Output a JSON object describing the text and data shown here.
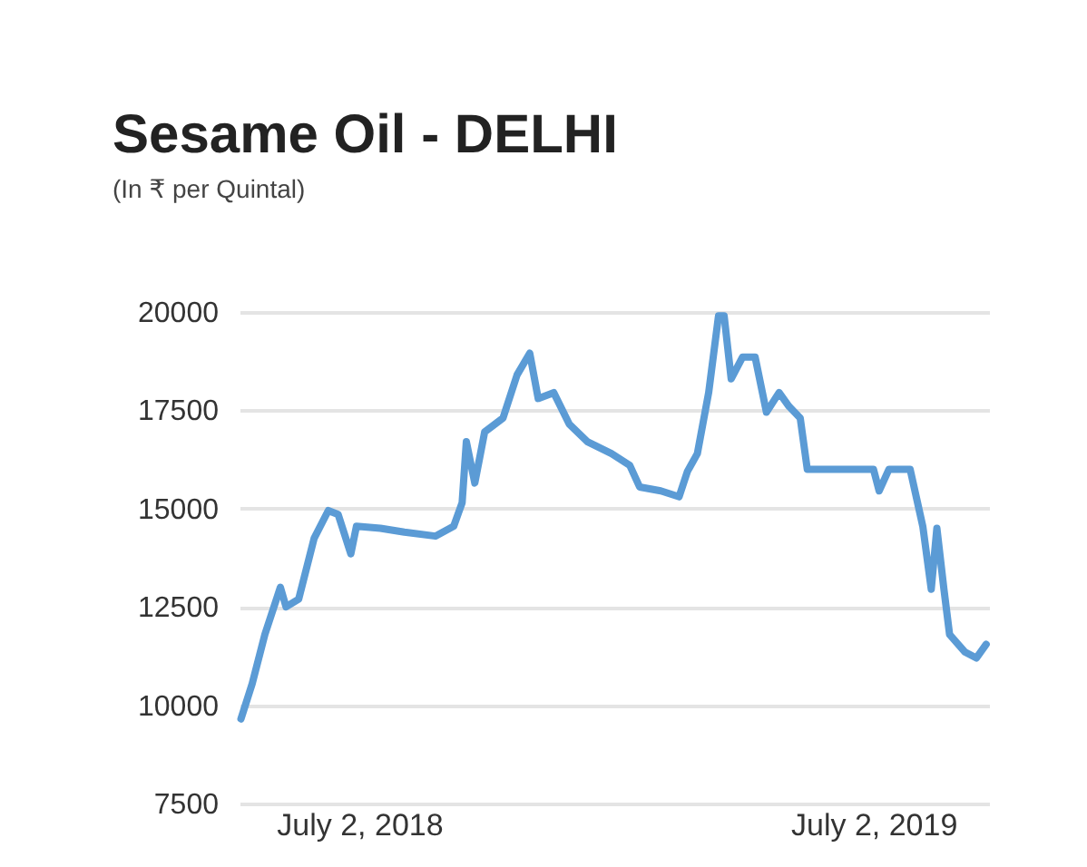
{
  "chart_data": {
    "type": "line",
    "title": "Sesame Oil - DELHI",
    "subtitle": "(In ₹ per Quintal)",
    "x": [
      "2018-04-09",
      "2018-04-17",
      "2018-04-26",
      "2018-05-07",
      "2018-05-11",
      "2018-05-20",
      "2018-05-31",
      "2018-06-10",
      "2018-06-17",
      "2018-06-26",
      "2018-06-30",
      "2018-07-17",
      "2018-08-03",
      "2018-08-25",
      "2018-09-07",
      "2018-09-13",
      "2018-09-16",
      "2018-09-22",
      "2018-09-29",
      "2018-10-12",
      "2018-10-22",
      "2018-10-31",
      "2018-11-06",
      "2018-11-17",
      "2018-11-28",
      "2018-12-11",
      "2018-12-28",
      "2019-01-10",
      "2019-01-17",
      "2019-02-01",
      "2019-02-14",
      "2019-02-20",
      "2019-02-27",
      "2019-03-07",
      "2019-03-14",
      "2019-03-18",
      "2019-03-23",
      "2019-03-31",
      "2019-04-09",
      "2019-04-17",
      "2019-04-26",
      "2019-05-03",
      "2019-05-11",
      "2019-05-16",
      "2019-07-02",
      "2019-07-06",
      "2019-07-13",
      "2019-07-28",
      "2019-08-06",
      "2019-08-12",
      "2019-08-16",
      "2019-08-21",
      "2019-08-25",
      "2019-09-05",
      "2019-09-13",
      "2019-09-20"
    ],
    "series": [
      {
        "color": "#5b9bd5",
        "values": [
          9650,
          10550,
          11800,
          13000,
          12500,
          12700,
          14250,
          14950,
          14850,
          13850,
          14550,
          14500,
          14400,
          14300,
          14550,
          15150,
          16700,
          15650,
          16950,
          17300,
          18400,
          18950,
          17800,
          17950,
          17150,
          16700,
          16400,
          16100,
          15550,
          15450,
          15300,
          15950,
          16400,
          17950,
          19900,
          19900,
          18300,
          18850,
          18850,
          17450,
          17950,
          17600,
          17300,
          16000,
          16000,
          15450,
          16000,
          16000,
          14550,
          12950,
          14500,
          12950,
          11800,
          11350,
          11200,
          11550
        ]
      }
    ],
    "xlim": [
      "2018-04-08",
      "2019-09-22"
    ],
    "xticks": [
      {
        "value": "2018-07-02",
        "label": "July 2, 2018"
      },
      {
        "value": "2019-07-02",
        "label": "July 2, 2019"
      }
    ],
    "ylim": [
      7500,
      20000
    ],
    "yticks": [
      7500,
      10000,
      12500,
      15000,
      17500,
      20000
    ],
    "grid": "y"
  }
}
